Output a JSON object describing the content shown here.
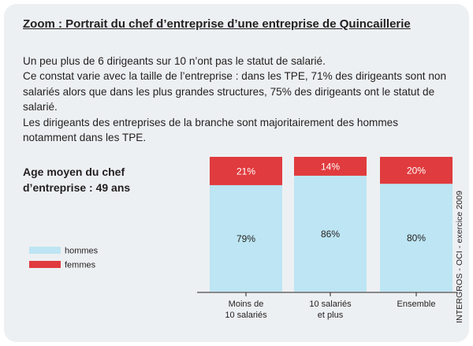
{
  "title": "Zoom : Portrait du chef d’entreprise d’une entreprise de Quincaillerie",
  "paragraphs": [
    "Un peu plus de 6 dirigeants sur 10 n’ont pas le statut de salarié.",
    "Ce constat varie avec la taille de l’entreprise : dans les TPE, 71% des dirigeants sont non salariés alors que dans les plus grandes structures, 75% des dirigeants ont le statut de salarié.",
    "Les dirigeants des entreprises de la branche sont majoritairement des hommes notamment dans les TPE."
  ],
  "avg_age": "Age moyen du chef d’entreprise : 49 ans",
  "source": "INTERGROS - OCI - exercice 2009",
  "colors": {
    "hommes": "#bde5f3",
    "femmes": "#e03b3e",
    "background": "#edf0f2"
  },
  "chart_data": {
    "type": "bar",
    "stacked": true,
    "title": "",
    "xlabel": "",
    "ylabel": "",
    "ylim": [
      0,
      100
    ],
    "categories": [
      [
        "Moins de",
        "10 salariés"
      ],
      [
        "10 salariés",
        "et plus"
      ],
      [
        "Ensemble"
      ]
    ],
    "series": [
      {
        "name": "hommes",
        "values": [
          79,
          86,
          80
        ],
        "labels": [
          "79%",
          "86%",
          "80%"
        ]
      },
      {
        "name": "femmes",
        "values": [
          21,
          14,
          20
        ],
        "labels": [
          "21%",
          "14%",
          "20%"
        ]
      }
    ],
    "legend": {
      "position": "left",
      "entries": [
        "hommes",
        "femmes"
      ]
    },
    "grid": false
  }
}
